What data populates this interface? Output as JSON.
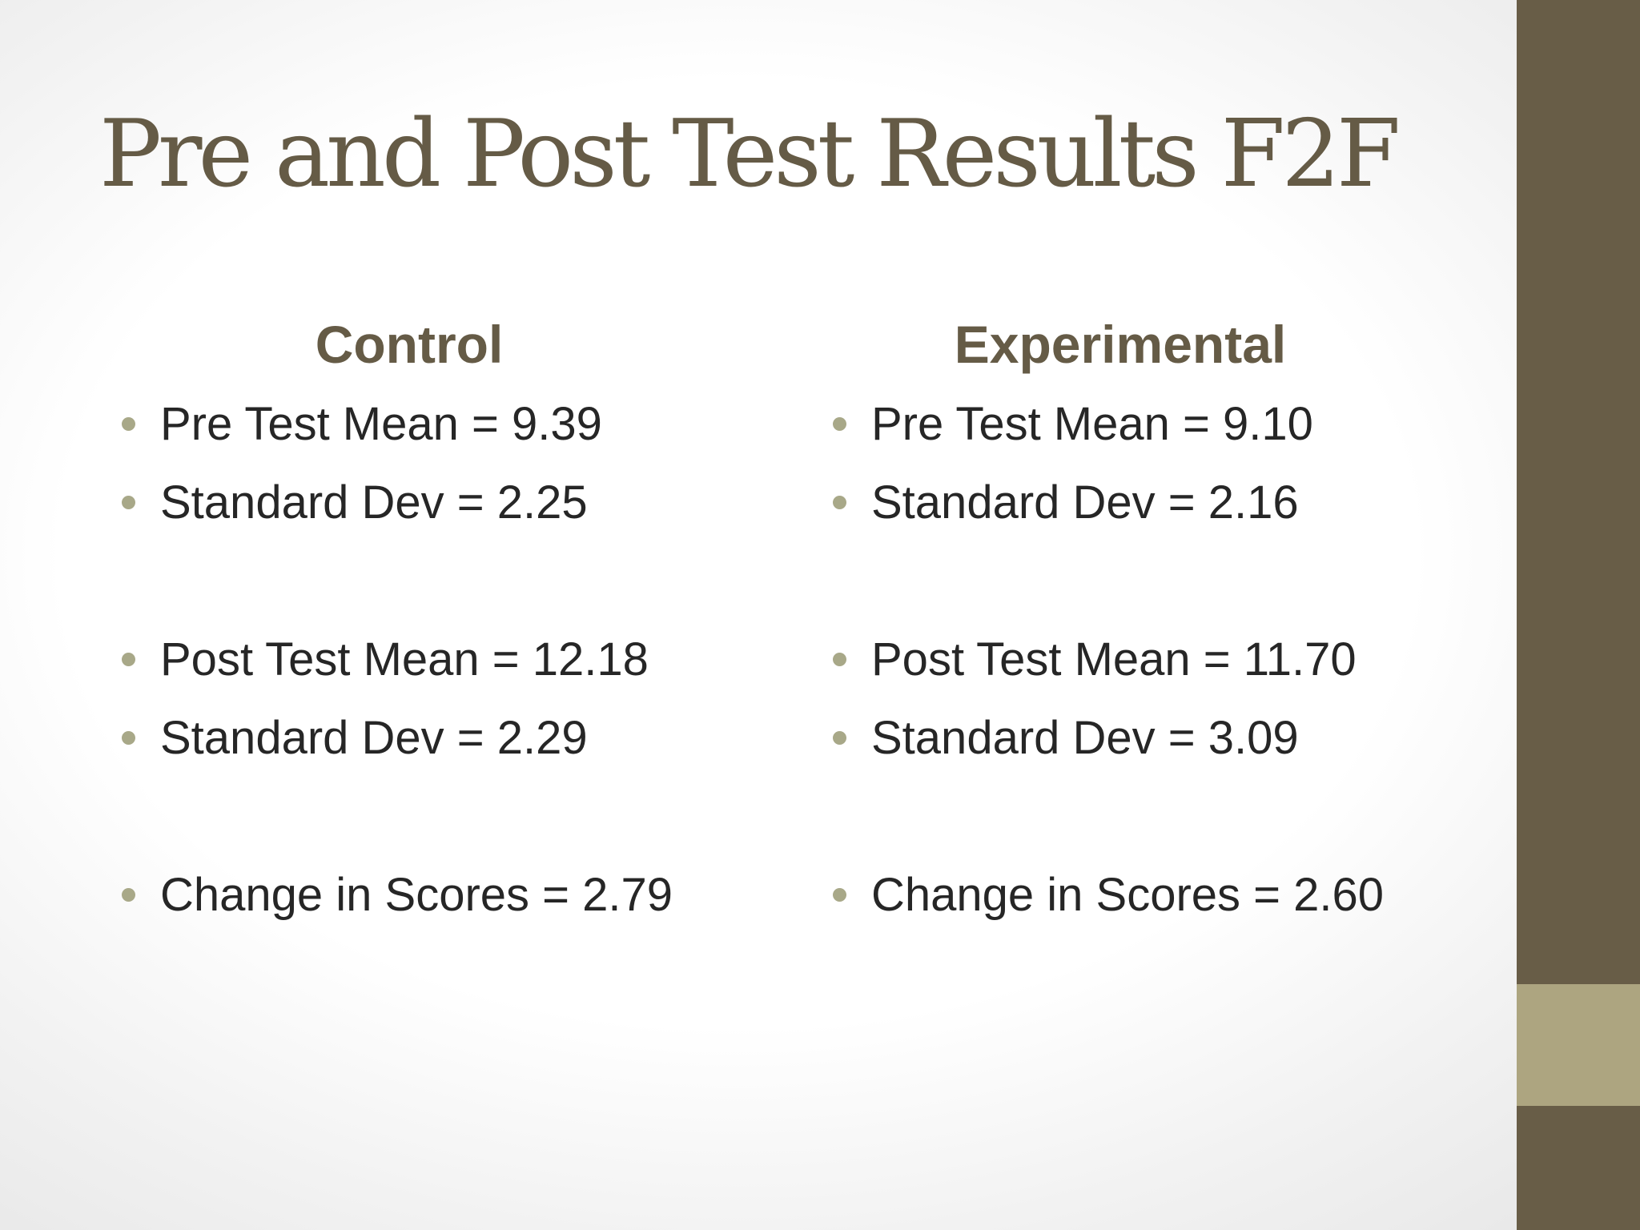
{
  "slide": {
    "title": "Pre and Post Test Results F2F",
    "colors": {
      "title": "#655b46",
      "heading": "#655b46",
      "bullet": "#a8a888",
      "body_text": "#262626",
      "side_bar": "#685d47",
      "side_bar_accent": "#ada580"
    },
    "columns": [
      {
        "heading": "Control",
        "items": [
          "Pre Test Mean = 9.39",
          "Standard Dev = 2.25",
          "Post Test Mean = 12.18",
          "Standard Dev = 2.29",
          "Change in Scores = 2.79"
        ]
      },
      {
        "heading": "Experimental",
        "items": [
          "Pre Test Mean = 9.10",
          "Standard Dev = 2.16",
          "Post Test Mean = 11.70",
          "Standard Dev = 3.09",
          "Change in Scores = 2.60"
        ]
      }
    ]
  }
}
